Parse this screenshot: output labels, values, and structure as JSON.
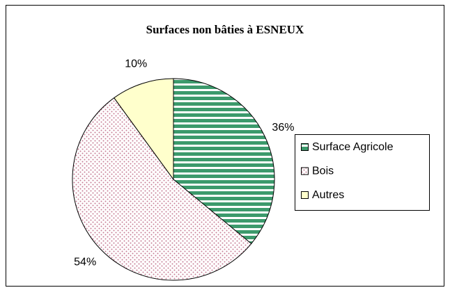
{
  "chart_data": {
    "type": "pie",
    "title": "Surfaces non bâties à ESNEUX",
    "categories": [
      "Surface Agricole",
      "Bois",
      "Autres"
    ],
    "values": [
      36,
      54,
      10
    ],
    "value_labels": [
      "36%",
      "54%",
      "10%"
    ],
    "colors": [
      "#3c9a6c",
      "#c77d95",
      "#ffffcc"
    ]
  }
}
